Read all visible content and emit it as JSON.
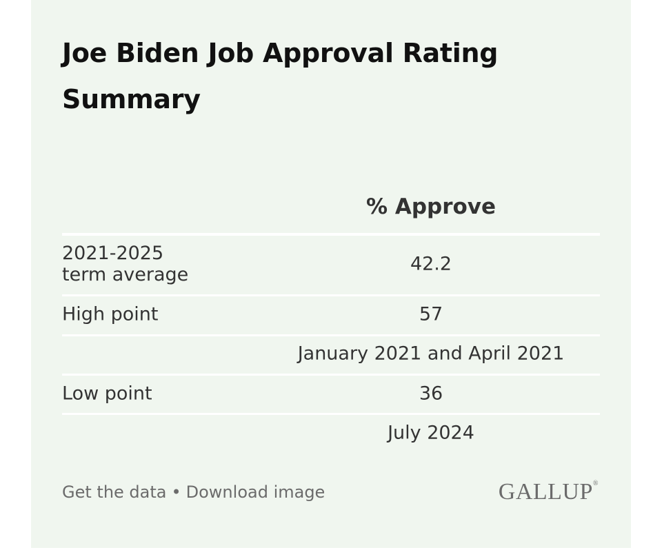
{
  "title": "Joe Biden Job Approval Rating Summary",
  "table": {
    "header": "% Approve",
    "rows": [
      {
        "label": "2021-2025 term average",
        "value": 42.2
      },
      {
        "label": "High point",
        "value": 57
      },
      {
        "value": "January 2021 and April 2021"
      },
      {
        "label": "Low point",
        "value": 36
      },
      {
        "value": "July 2024"
      }
    ]
  },
  "footer": {
    "links": [
      "Get the data",
      "Download image"
    ],
    "separator": "•",
    "logo": "GALLUP",
    "logo_mark": "®"
  }
}
